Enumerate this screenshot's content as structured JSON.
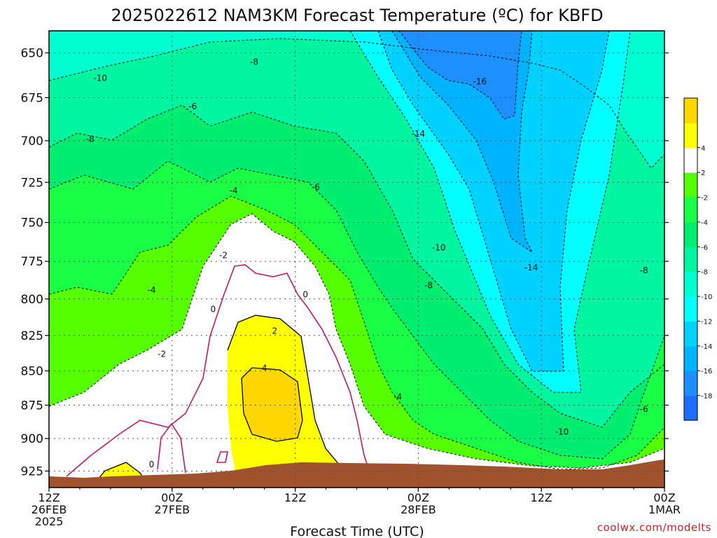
{
  "chart_data": {
    "type": "heatmap",
    "title": "2025022612 NAM3KM Forecast Temperature (ºC) for KBFD",
    "xlabel": "Forecast Time (UTC)",
    "ylabel": "",
    "x_ticks": [
      {
        "hour": 0,
        "lines": [
          "12Z",
          "26FEB",
          "2025"
        ]
      },
      {
        "hour": 12,
        "lines": [
          "00Z",
          "27FEB"
        ]
      },
      {
        "hour": 24,
        "lines": [
          "12Z"
        ]
      },
      {
        "hour": 36,
        "lines": [
          "00Z",
          "28FEB"
        ]
      },
      {
        "hour": 48,
        "lines": [
          "12Z"
        ]
      },
      {
        "hour": 60,
        "lines": [
          "00Z",
          "1MAR"
        ]
      }
    ],
    "xlim": [
      0,
      60
    ],
    "y_ticks": [
      650,
      675,
      700,
      725,
      750,
      775,
      800,
      825,
      850,
      875,
      900,
      925
    ],
    "ylim": [
      638,
      938
    ],
    "y_scale": "log-pressure (hPa), inverted",
    "grid": true,
    "colorbar": {
      "placement": "right",
      "levels": [
        -20,
        -18,
        -16,
        -14,
        -12,
        -10,
        -8,
        -6,
        -4,
        -2,
        2,
        4,
        6
      ],
      "colors": [
        "#1e6fff",
        "#1e8fff",
        "#00b3ff",
        "#00d2ff",
        "#00ffff",
        "#00ffd0",
        "#00f5a0",
        "#00ee70",
        "#18ff45",
        "#55ff00",
        "#ffffff",
        "#ffff00",
        "#ffd700"
      ],
      "tick_labels": [
        "-18",
        "-16",
        "-14",
        "-12",
        "-10",
        "-8",
        "-6",
        "-4",
        "-2",
        "2",
        "4"
      ]
    },
    "contour_labels": [
      {
        "text": "-10",
        "hour": 5.0,
        "p": 664
      },
      {
        "text": "-8",
        "hour": 20.0,
        "p": 655
      },
      {
        "text": "-6",
        "hour": 14.0,
        "p": 680
      },
      {
        "text": "-8",
        "hour": 4.0,
        "p": 699
      },
      {
        "text": "-4",
        "hour": 18.0,
        "p": 730
      },
      {
        "text": "-6",
        "hour": 26.0,
        "p": 728
      },
      {
        "text": "-14",
        "hour": 36.0,
        "p": 696
      },
      {
        "text": "-16",
        "hour": 42.0,
        "p": 666
      },
      {
        "text": "-10",
        "hour": 38.0,
        "p": 766
      },
      {
        "text": "-14",
        "hour": 47.0,
        "p": 779
      },
      {
        "text": "-8",
        "hour": 37.0,
        "p": 791
      },
      {
        "text": "-8",
        "hour": 58.0,
        "p": 781
      },
      {
        "text": "-2",
        "hour": 17.0,
        "p": 771
      },
      {
        "text": "-4",
        "hour": 10.0,
        "p": 794
      },
      {
        "text": "0",
        "hour": 16.0,
        "p": 807
      },
      {
        "text": "0",
        "hour": 25.0,
        "p": 797
      },
      {
        "text": "2",
        "hour": 22.0,
        "p": 822
      },
      {
        "text": "-2",
        "hour": 11.0,
        "p": 838
      },
      {
        "text": "4",
        "hour": 21.0,
        "p": 848
      },
      {
        "text": "-4",
        "hour": 34.0,
        "p": 869
      },
      {
        "text": "-6",
        "hour": 58.0,
        "p": 878
      },
      {
        "text": "-10",
        "hour": 50.0,
        "p": 895
      },
      {
        "text": "0",
        "hour": 10.0,
        "p": 920
      }
    ]
  },
  "credit": "coolwx.com/modelts",
  "terrain_color": "#a0522d"
}
